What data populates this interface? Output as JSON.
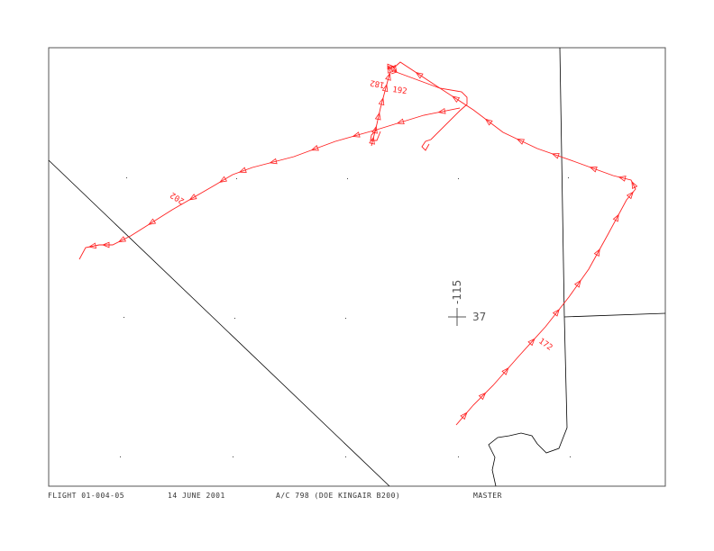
{
  "colors": {
    "track": "#ff2020",
    "boundary": "#000000",
    "frame": "#555555"
  },
  "map": {
    "center_marker": {
      "lon_label": "-115",
      "lat_label": "37"
    },
    "track_labels": [
      "172",
      "182",
      "192",
      "202"
    ]
  },
  "footer": {
    "flight": "FLIGHT 01-004-05",
    "date": "14 JUNE 2001",
    "aircraft": "A/C 798 (DOE KINGAIR B200)",
    "mode": "MASTER"
  }
}
